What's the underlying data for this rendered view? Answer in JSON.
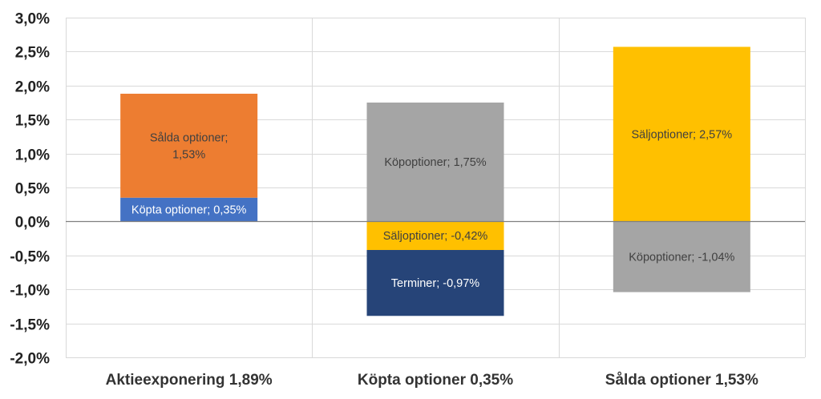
{
  "chart_data": {
    "type": "bar",
    "stacked": true,
    "categories": [
      "Aktieexponering 1,89%",
      "Köpta optioner 0,35%",
      "Sålda optioner 1,53%"
    ],
    "ylim": [
      -0.02,
      0.03
    ],
    "ytick_step": 0.005,
    "ytick_labels": [
      "-2,0%",
      "-1,5%",
      "-1,0%",
      "-0,5%",
      "0,0%",
      "0,5%",
      "1,0%",
      "1,5%",
      "2,0%",
      "2,5%",
      "3,0%"
    ],
    "grid": true,
    "legend": "none",
    "segments": [
      {
        "category": 0,
        "value": 0.0035,
        "label_lines": [
          "Köpta optioner; 0,35%"
        ],
        "color": "#4472C4",
        "label_color": "#ffffff"
      },
      {
        "category": 0,
        "value": 0.0153,
        "label_lines": [
          "Sålda optioner;",
          "1,53%"
        ],
        "color": "#ED7D31",
        "label_color": "#404040"
      },
      {
        "category": 1,
        "value": 0.0175,
        "label_lines": [
          "Köpoptioner; 1,75%"
        ],
        "color": "#A5A5A5",
        "label_color": "#404040"
      },
      {
        "category": 1,
        "value": -0.0042,
        "label_lines": [
          "Säljoptioner; -0,42%"
        ],
        "color": "#FFC000",
        "label_color": "#404040"
      },
      {
        "category": 1,
        "value": -0.0097,
        "label_lines": [
          "Terminer; -0,97%"
        ],
        "color": "#264478",
        "label_color": "#ffffff"
      },
      {
        "category": 2,
        "value": 0.0257,
        "label_lines": [
          "Säljoptioner; 2,57%"
        ],
        "color": "#FFC000",
        "label_color": "#404040"
      },
      {
        "category": 2,
        "value": -0.0104,
        "label_lines": [
          "Köpoptioner; -1,04%"
        ],
        "color": "#A5A5A5",
        "label_color": "#404040"
      }
    ]
  },
  "colors": {
    "gridline": "#d9d9d9",
    "zero_line": "#7f7f7f",
    "axis_text": "#222222",
    "category_text": "#333333"
  }
}
